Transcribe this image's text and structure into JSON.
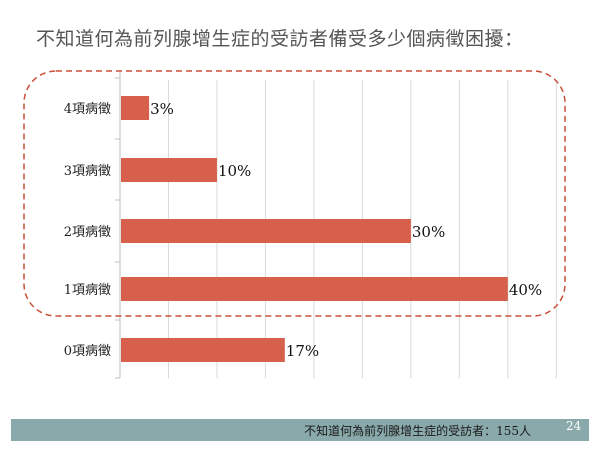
{
  "slide": {
    "title": "不知道何為前列腺增生症的受訪者備受多少個病徵困擾：",
    "footer_note": "不知道何為前列腺增生症的受訪者：155人",
    "page_number": "24"
  },
  "colors": {
    "bar": "#d6604b",
    "highlight_border": "#c8503a",
    "footer_bar": "#8aa9aa"
  },
  "chart_data": {
    "type": "bar",
    "orientation": "horizontal",
    "title": "",
    "xlabel": "",
    "ylabel": "",
    "categories": [
      "4項病徵",
      "3項病徵",
      "2項病徵",
      "1項病徵",
      "0項病徵"
    ],
    "values": [
      3,
      10,
      30,
      40,
      17
    ],
    "value_labels": [
      "3%",
      "10%",
      "30%",
      "40%",
      "17%"
    ],
    "xlim": [
      0,
      46
    ],
    "grid": true,
    "legend": "none",
    "highlighted_categories": [
      "4項病徵",
      "3項病徵",
      "2項病徵",
      "1項病徵"
    ]
  }
}
